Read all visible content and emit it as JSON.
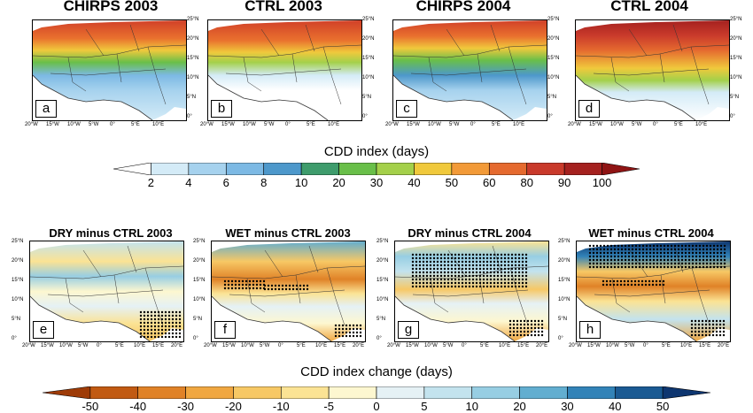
{
  "row1": {
    "panels": [
      {
        "title": "CHIRPS 2003",
        "letter": "a"
      },
      {
        "title": "CTRL 2003",
        "letter": "b"
      },
      {
        "title": "CHIRPS 2004",
        "letter": "c"
      },
      {
        "title": "CTRL 2004",
        "letter": "d"
      }
    ],
    "colorbar": {
      "title": "CDD index (days)",
      "labels": [
        "2",
        "4",
        "6",
        "8",
        "10",
        "20",
        "30",
        "40",
        "50",
        "60",
        "80",
        "90",
        "100"
      ],
      "colors": [
        "#ffffff",
        "#d4ebf7",
        "#a6d2ee",
        "#7cb9e4",
        "#4d98cb",
        "#3e9c6c",
        "#69bf49",
        "#a4d04a",
        "#f0c93c",
        "#f29a38",
        "#e56a2f",
        "#c93a2b",
        "#a5211f",
        "#8f1414"
      ]
    }
  },
  "row2": {
    "panels": [
      {
        "title": "DRY minus CTRL 2003",
        "letter": "e"
      },
      {
        "title": "WET minus CTRL 2003",
        "letter": "f"
      },
      {
        "title": "DRY minus CTRL 2004",
        "letter": "g"
      },
      {
        "title": "WET minus CTRL 2004",
        "letter": "h"
      }
    ],
    "colorbar": {
      "title": "CDD index change (days)",
      "labels": [
        "-50",
        "-40",
        "-30",
        "-20",
        "-10",
        "-5",
        "0",
        "5",
        "10",
        "20",
        "30",
        "40",
        "50"
      ],
      "colors": [
        "#9e3b07",
        "#c15a12",
        "#e08227",
        "#f0a741",
        "#f7c865",
        "#fbe394",
        "#fdf7d0",
        "#e5f1f5",
        "#c3e3ee",
        "#97cee3",
        "#62aed0",
        "#3283b8",
        "#1a5a93",
        "#0e3670"
      ]
    }
  },
  "axes": {
    "lon_ticks": [
      "20°W",
      "15°W",
      "10°W",
      "5°W",
      "0°",
      "5°E",
      "10°E"
    ],
    "lon_ticks_row2": [
      "20°W",
      "15°W",
      "10°W",
      "5°W",
      "0°",
      "5°E",
      "10°E",
      "15°E",
      "20°E"
    ],
    "lat_ticks": [
      "25°N",
      "20°N",
      "15°N",
      "10°N",
      "5°N",
      "0°"
    ]
  }
}
